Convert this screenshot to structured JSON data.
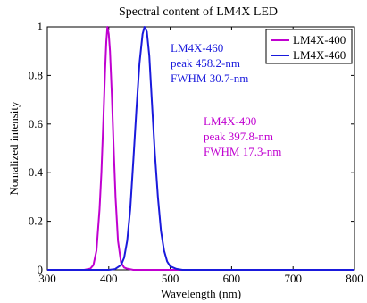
{
  "chart_data": {
    "type": "line",
    "title": "Spectral content of LM4X LED",
    "xlabel": "Wavelength  (nm)",
    "ylabel": "Nomalized intensity",
    "xlim": [
      300,
      800
    ],
    "ylim": [
      0,
      1
    ],
    "x_ticks": [
      300,
      400,
      500,
      600,
      700,
      800
    ],
    "y_ticks": [
      0,
      0.2,
      0.4,
      0.6,
      0.8,
      1
    ],
    "x_tick_labels": [
      "300",
      "400",
      "500",
      "600",
      "700",
      "800"
    ],
    "y_tick_labels": [
      "0",
      "0.2",
      "0.4",
      "0.6",
      "0.8",
      "1"
    ],
    "grid": false,
    "legend_position": "top-right",
    "series": [
      {
        "name": "LM4X-400",
        "color": "#c000d0",
        "peak_nm": 397.8,
        "fwhm_nm": 17.3,
        "x": [
          300,
          360,
          370,
          375,
          380,
          385,
          388,
          391,
          394,
          396,
          397.8,
          400,
          402,
          405,
          408,
          411,
          415,
          420,
          425,
          430,
          440,
          460,
          500,
          600,
          700,
          800
        ],
        "y": [
          0,
          0,
          0.005,
          0.02,
          0.08,
          0.25,
          0.4,
          0.6,
          0.82,
          0.94,
          1.0,
          0.97,
          0.9,
          0.72,
          0.5,
          0.3,
          0.12,
          0.03,
          0.01,
          0.005,
          0,
          0,
          0,
          0,
          0,
          0
        ]
      },
      {
        "name": "LM4X-460",
        "color": "#1a1adc",
        "peak_nm": 458.2,
        "fwhm_nm": 30.7,
        "x": [
          300,
          400,
          410,
          420,
          425,
          430,
          435,
          440,
          445,
          450,
          455,
          458.2,
          462,
          466,
          470,
          475,
          480,
          485,
          490,
          495,
          500,
          510,
          520,
          600,
          700,
          800
        ],
        "y": [
          0,
          0,
          0.003,
          0.02,
          0.05,
          0.12,
          0.25,
          0.45,
          0.66,
          0.85,
          0.97,
          1.0,
          0.98,
          0.88,
          0.7,
          0.48,
          0.3,
          0.16,
          0.08,
          0.035,
          0.015,
          0.004,
          0,
          0,
          0,
          0
        ]
      }
    ],
    "annotations": [
      {
        "lines": [
          "LM4X-460",
          "peak 458.2-nm",
          "FWHM 30.7-nm"
        ],
        "color": "#1a1adc"
      },
      {
        "lines": [
          "LM4X-400",
          "peak 397.8-nm",
          "FWHM 17.3-nm"
        ],
        "color": "#c000d0"
      }
    ]
  }
}
